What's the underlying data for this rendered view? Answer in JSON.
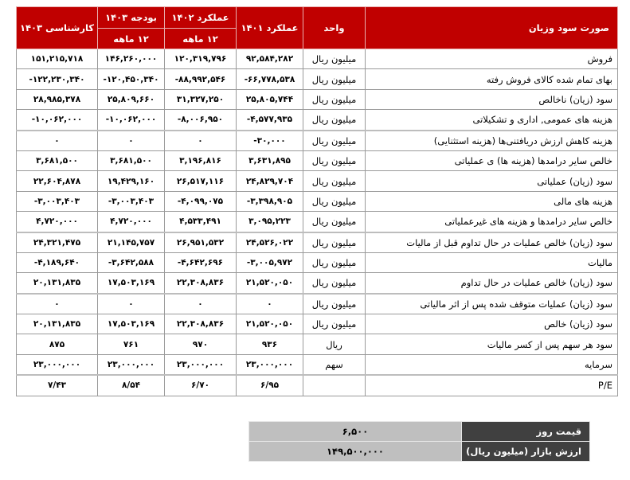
{
  "table": {
    "headers": {
      "label": "صورت سود وزیان",
      "unit": "واحد",
      "c1401": "عملکرد ۱۴۰۱",
      "c1402": "عملکرد ۱۴۰۲",
      "c1402_sub": "۱۲ ماهه",
      "budget1403": "بودجه ۱۴۰۳",
      "budget1403_sub": "۱۲ ماهه",
      "expert1403": "کارشناسی ۱۴۰۳"
    },
    "rows": [
      {
        "label": "فروش",
        "unit": "میلیون ریال",
        "c1401": "۹۲,۵۸۴,۲۸۲",
        "c1402": "۱۲۰,۳۱۹,۷۹۶",
        "budget": "۱۴۶,۲۶۰,۰۰۰",
        "expert": "۱۵۱,۲۱۵,۷۱۸"
      },
      {
        "label": "بهای تمام شده کالای فروش رفته",
        "unit": "میلیون ریال",
        "c1401": "-۶۶,۷۷۸,۵۳۸",
        "c1402": "-۸۸,۹۹۲,۵۴۶",
        "budget": "-۱۲۰,۴۵۰,۳۴۰",
        "expert": "-۱۲۲,۲۳۰,۳۴۰"
      },
      {
        "label": "سود (زیان) ناخالص",
        "unit": "میلیون ریال",
        "c1401": "۲۵,۸۰۵,۷۴۴",
        "c1402": "۳۱,۳۲۷,۲۵۰",
        "budget": "۲۵,۸۰۹,۶۶۰",
        "expert": "۲۸,۹۸۵,۳۷۸"
      },
      {
        "label": "هزینه های عمومی, اداری و تشکیلاتی",
        "unit": "میلیون ریال",
        "c1401": "-۴,۵۷۷,۹۳۵",
        "c1402": "-۸,۰۰۶,۹۵۰",
        "budget": "-۱۰,۰۶۲,۰۰۰",
        "expert": "-۱۰,۰۶۲,۰۰۰"
      },
      {
        "label": "هزینه کاهش ارزش دریافتنی‌ها (هزینه استثنایی)",
        "unit": "میلیون ریال",
        "c1401": "-۳۰,۰۰۰",
        "c1402": "۰",
        "budget": "۰",
        "expert": "۰"
      },
      {
        "label": "خالص سایر درامدها (هزینه ها) ی عملیاتی",
        "unit": "میلیون ریال",
        "c1401": "۳,۶۳۱,۸۹۵",
        "c1402": "۳,۱۹۶,۸۱۶",
        "budget": "۳,۶۸۱,۵۰۰",
        "expert": "۳,۶۸۱,۵۰۰"
      },
      {
        "label": "سود (زیان) عملیاتی",
        "unit": "میلیون ریال",
        "c1401": "۲۴,۸۲۹,۷۰۴",
        "c1402": "۲۶,۵۱۷,۱۱۶",
        "budget": "۱۹,۴۲۹,۱۶۰",
        "expert": "۲۲,۶۰۴,۸۷۸"
      },
      {
        "label": "هزینه های مالی",
        "unit": "میلیون ریال",
        "c1401": "-۳,۳۹۸,۹۰۵",
        "c1402": "-۴,۰۹۹,۰۷۵",
        "budget": "-۳,۰۰۳,۴۰۳",
        "expert": "-۳,۰۰۳,۴۰۳"
      },
      {
        "label": "خالص سایر درامدها و هزینه های غیرعملیاتی",
        "unit": "میلیون ریال",
        "c1401": "۳,۰۹۵,۲۲۳",
        "c1402": "۴,۵۳۳,۴۹۱",
        "budget": "۴,۷۲۰,۰۰۰",
        "expert": "۴,۷۲۰,۰۰۰"
      },
      {
        "label": "سود (زیان) خالص عملیات در حال تداوم قبل از مالیات",
        "unit": "میلیون ریال",
        "c1401": "۲۴,۵۲۶,۰۲۲",
        "c1402": "۲۶,۹۵۱,۵۳۲",
        "budget": "۲۱,۱۴۵,۷۵۷",
        "expert": "۲۴,۳۲۱,۴۷۵"
      },
      {
        "label": "مالیات",
        "unit": "میلیون ریال",
        "c1401": "-۳,۰۰۵,۹۷۲",
        "c1402": "-۴,۶۴۲,۶۹۶",
        "budget": "-۳,۶۴۲,۵۸۸",
        "expert": "-۴,۱۸۹,۶۴۰"
      },
      {
        "label": "سود (زیان) خالص عملیات در حال تداوم",
        "unit": "میلیون ریال",
        "c1401": "۲۱,۵۲۰,۰۵۰",
        "c1402": "۲۲,۳۰۸,۸۳۶",
        "budget": "۱۷,۵۰۳,۱۶۹",
        "expert": "۲۰,۱۳۱,۸۳۵"
      },
      {
        "label": "سود (زیان) عملیات متوقف شده پس از اثر مالیاتی",
        "unit": "میلیون ریال",
        "c1401": "۰",
        "c1402": "۰",
        "budget": "۰",
        "expert": "۰"
      },
      {
        "label": "سود (زیان) خالص",
        "unit": "میلیون ریال",
        "c1401": "۲۱,۵۲۰,۰۵۰",
        "c1402": "۲۲,۳۰۸,۸۳۶",
        "budget": "۱۷,۵۰۳,۱۶۹",
        "expert": "۲۰,۱۳۱,۸۳۵"
      },
      {
        "label": "سود هر سهم پس از کسر مالیات",
        "unit": "ریال",
        "c1401": "۹۳۶",
        "c1402": "۹۷۰",
        "budget": "۷۶۱",
        "expert": "۸۷۵"
      },
      {
        "label": "سرمایه",
        "unit": "سهم",
        "c1401": "۲۳,۰۰۰,۰۰۰",
        "c1402": "۲۳,۰۰۰,۰۰۰",
        "budget": "۲۳,۰۰۰,۰۰۰",
        "expert": "۲۳,۰۰۰,۰۰۰"
      },
      {
        "label": "P/E",
        "unit": "",
        "c1401": "۶/۹۵",
        "c1402": "۶/۷۰",
        "budget": "۸/۵۴",
        "expert": "۷/۴۳"
      }
    ]
  },
  "market": {
    "price_label": "قیمت روز",
    "price_value": "۶,۵۰۰",
    "cap_label": "ارزش بازار (میلیون ریال)",
    "cap_value": "۱۴۹,۵۰۰,۰۰۰"
  },
  "colors": {
    "header_bg": "#c00000",
    "market_label_bg": "#404040",
    "market_value_bg": "#bfbfbf"
  }
}
